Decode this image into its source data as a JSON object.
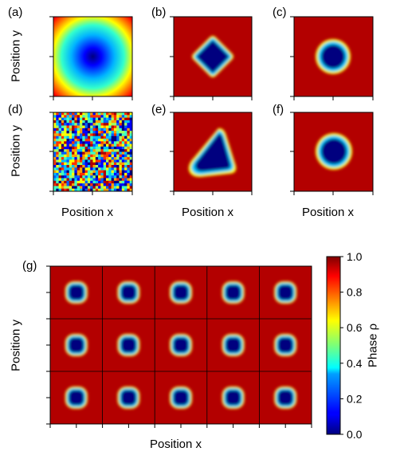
{
  "panels": {
    "a": {
      "label": "(a)",
      "pattern": "gradient-field"
    },
    "b": {
      "label": "(b)",
      "pattern": "rounded-square-hole"
    },
    "c": {
      "label": "(c)",
      "pattern": "circular-hole"
    },
    "d": {
      "label": "(d)",
      "pattern": "random-noise"
    },
    "e": {
      "label": "(e)",
      "pattern": "irregular-hole"
    },
    "f": {
      "label": "(f)",
      "pattern": "circular-hole"
    },
    "g": {
      "label": "(g)",
      "pattern": "array-of-holes",
      "grid_rows": 3,
      "grid_cols": 5
    }
  },
  "axes": {
    "position_x": "Position x",
    "position_y": "Position y"
  },
  "colorbar": {
    "label": "Phase ρ",
    "ticks": [
      "1.0",
      "0.8",
      "0.6",
      "0.4",
      "0.2",
      "0.0"
    ],
    "colormap": "jet",
    "colors": {
      "high": "#b80000",
      "low": "#00007f"
    }
  }
}
